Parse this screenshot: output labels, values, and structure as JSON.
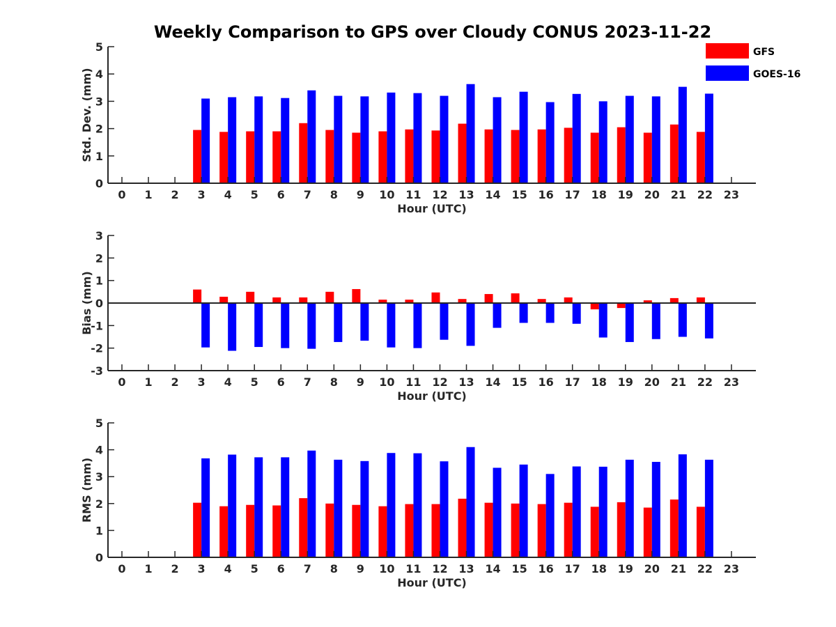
{
  "title": "Weekly Comparison to GPS over Cloudy CONUS 2023-11-22",
  "colors": {
    "GFS": "#ff0000",
    "GOES-16": "#0000ff",
    "axis": "#262626"
  },
  "legend": {
    "position": "top-right",
    "entries": [
      "GFS",
      "GOES-16"
    ]
  },
  "chart_data": [
    {
      "type": "bar",
      "ylabel": "Std. Dev. (mm)",
      "xlabel": "Hour (UTC)",
      "ylim": [
        0,
        5
      ],
      "yticks": [
        0,
        1,
        2,
        3,
        4,
        5
      ],
      "categories": [
        0,
        1,
        2,
        3,
        4,
        5,
        6,
        7,
        8,
        9,
        10,
        11,
        12,
        13,
        14,
        15,
        16,
        17,
        18,
        19,
        20,
        21,
        22,
        23
      ],
      "series": [
        {
          "name": "GFS",
          "values": [
            null,
            null,
            null,
            1.95,
            1.88,
            1.9,
            1.9,
            2.2,
            1.95,
            1.85,
            1.9,
            1.97,
            1.93,
            2.18,
            1.97,
            1.95,
            1.97,
            2.03,
            1.85,
            2.05,
            1.85,
            2.15,
            1.88,
            null
          ]
        },
        {
          "name": "GOES-16",
          "values": [
            null,
            null,
            null,
            3.1,
            3.15,
            3.18,
            3.12,
            3.4,
            3.2,
            3.18,
            3.32,
            3.3,
            3.2,
            3.63,
            3.15,
            3.35,
            2.97,
            3.27,
            3.0,
            3.2,
            3.18,
            3.53,
            3.28,
            null
          ]
        }
      ]
    },
    {
      "type": "bar",
      "ylabel": "Bias (mm)",
      "xlabel": "Hour (UTC)",
      "ylim": [
        -3,
        3
      ],
      "yticks": [
        -3,
        -2,
        -1,
        0,
        1,
        2,
        3
      ],
      "zero_line": true,
      "categories": [
        0,
        1,
        2,
        3,
        4,
        5,
        6,
        7,
        8,
        9,
        10,
        11,
        12,
        13,
        14,
        15,
        16,
        17,
        18,
        19,
        20,
        21,
        22,
        23
      ],
      "series": [
        {
          "name": "GFS",
          "values": [
            null,
            null,
            null,
            0.6,
            0.28,
            0.5,
            0.25,
            0.25,
            0.5,
            0.62,
            0.15,
            0.15,
            0.47,
            0.18,
            0.4,
            0.43,
            0.18,
            0.25,
            -0.28,
            -0.22,
            0.12,
            0.22,
            0.25,
            null
          ]
        },
        {
          "name": "GOES-16",
          "values": [
            null,
            null,
            null,
            -1.97,
            -2.12,
            -1.95,
            -2.0,
            -2.03,
            -1.73,
            -1.67,
            -1.97,
            -2.0,
            -1.63,
            -1.9,
            -1.1,
            -0.88,
            -0.88,
            -0.92,
            -1.53,
            -1.73,
            -1.6,
            -1.5,
            -1.57,
            null
          ]
        }
      ]
    },
    {
      "type": "bar",
      "ylabel": "RMS (mm)",
      "xlabel": "Hour (UTC)",
      "ylim": [
        0,
        5
      ],
      "yticks": [
        0,
        1,
        2,
        3,
        4,
        5
      ],
      "categories": [
        0,
        1,
        2,
        3,
        4,
        5,
        6,
        7,
        8,
        9,
        10,
        11,
        12,
        13,
        14,
        15,
        16,
        17,
        18,
        19,
        20,
        21,
        22,
        23
      ],
      "series": [
        {
          "name": "GFS",
          "values": [
            null,
            null,
            null,
            2.03,
            1.9,
            1.95,
            1.93,
            2.2,
            2.0,
            1.95,
            1.9,
            1.98,
            1.98,
            2.18,
            2.03,
            2.0,
            1.98,
            2.03,
            1.88,
            2.05,
            1.85,
            2.15,
            1.88,
            null
          ]
        },
        {
          "name": "GOES-16",
          "values": [
            null,
            null,
            null,
            3.68,
            3.82,
            3.72,
            3.72,
            3.97,
            3.63,
            3.58,
            3.88,
            3.87,
            3.57,
            4.1,
            3.33,
            3.45,
            3.1,
            3.38,
            3.37,
            3.63,
            3.55,
            3.83,
            3.63,
            null
          ]
        }
      ]
    }
  ]
}
